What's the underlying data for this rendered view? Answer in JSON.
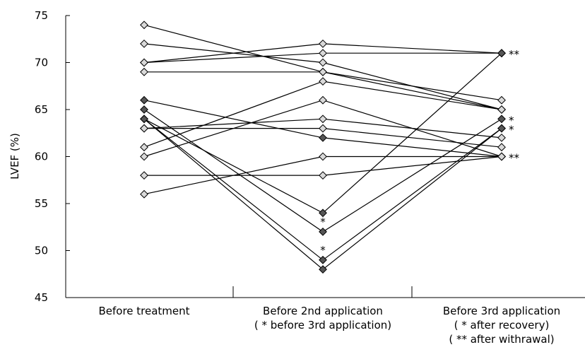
{
  "chart_data": {
    "type": "line",
    "ylabel": "LVEF (%)",
    "xlabel": "",
    "ylim": [
      45,
      75
    ],
    "yticks": [
      45,
      50,
      55,
      60,
      65,
      70,
      75
    ],
    "grid": false,
    "categories": [
      {
        "lines": [
          "Before treatment"
        ]
      },
      {
        "lines": [
          "Before 2nd application",
          "( * before 3rd application)"
        ]
      },
      {
        "lines": [
          "Before 3rd application",
          "( * after recovery)",
          "( ** after withrawal)"
        ]
      }
    ],
    "marker_colors": {
      "normal": "#d9d9d9",
      "highlighted": "#555555"
    },
    "series": [
      {
        "values": [
          74,
          69,
          65
        ],
        "highlight": false
      },
      {
        "values": [
          72,
          70,
          65
        ],
        "highlight": false
      },
      {
        "values": [
          70,
          72,
          71
        ],
        "highlight": false
      },
      {
        "values": [
          70,
          71,
          71
        ],
        "highlight": false
      },
      {
        "values": [
          69,
          69,
          66
        ],
        "highlight": false
      },
      {
        "values": [
          66,
          62,
          60
        ],
        "highlight": true,
        "marks": [
          null,
          null,
          "**"
        ]
      },
      {
        "values": [
          65,
          52,
          64
        ],
        "highlight": true,
        "marks": [
          null,
          "*",
          "*"
        ]
      },
      {
        "values": [
          64,
          49,
          63
        ],
        "highlight": true,
        "marks": [
          null,
          "*",
          "*"
        ]
      },
      {
        "values": [
          64,
          54,
          71
        ],
        "highlight": true,
        "marks": [
          null,
          null,
          "**"
        ]
      },
      {
        "values": [
          64,
          48,
          63
        ],
        "highlight": true
      },
      {
        "values": [
          63,
          64,
          62
        ],
        "highlight": false
      },
      {
        "values": [
          63,
          63,
          61
        ],
        "highlight": false
      },
      {
        "values": [
          61,
          68,
          65
        ],
        "highlight": false
      },
      {
        "values": [
          60,
          66,
          60
        ],
        "highlight": false
      },
      {
        "values": [
          58,
          58,
          60
        ],
        "highlight": false
      },
      {
        "values": [
          56,
          60,
          60
        ],
        "highlight": false
      }
    ]
  }
}
